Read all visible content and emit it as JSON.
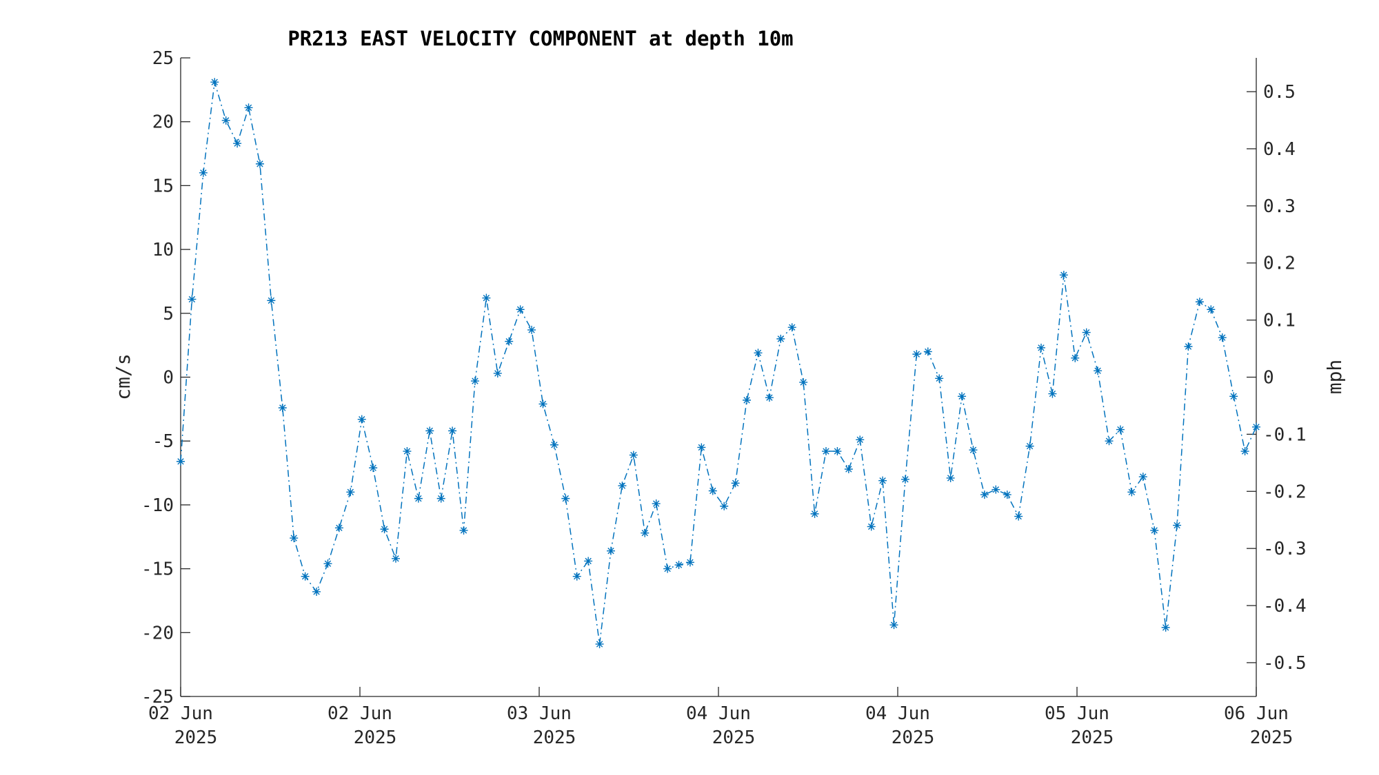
{
  "chart_data": {
    "type": "line",
    "title": "PR213 EAST VELOCITY COMPONENT at depth 10m",
    "ylabel": "cm/s",
    "y2label": "mph",
    "ylim": [
      -25,
      25
    ],
    "y2lim": [
      -0.5592,
      0.5592
    ],
    "yticks": [
      "25",
      "20",
      "15",
      "10",
      "5",
      "0",
      "-5",
      "-10",
      "-15",
      "-20",
      "-25"
    ],
    "y2ticks": [
      "0.5",
      "0.4",
      "0.3",
      "0.2",
      "0.1",
      "0",
      "-0.1",
      "-0.2",
      "-0.3",
      "-0.4",
      "-0.5"
    ],
    "xticks": [
      {
        "day": "02 Jun",
        "year": "2025"
      },
      {
        "day": "02 Jun",
        "year": "2025"
      },
      {
        "day": "03 Jun",
        "year": "2025"
      },
      {
        "day": "04 Jun",
        "year": "2025"
      },
      {
        "day": "04 Jun",
        "year": "2025"
      },
      {
        "day": "05 Jun",
        "year": "2025"
      },
      {
        "day": "06 Jun",
        "year": "2025"
      }
    ],
    "grid": false,
    "line_style": "dash-dot",
    "marker": "asterisk",
    "series": [
      {
        "color": "#0072BD",
        "values": [
          -6.6,
          6.1,
          16.0,
          23.1,
          20.1,
          18.3,
          21.1,
          16.7,
          6.0,
          -2.4,
          -12.6,
          -15.6,
          -16.8,
          -14.6,
          -11.8,
          -9.0,
          -3.3,
          -7.1,
          -11.9,
          -14.2,
          -5.8,
          -9.5,
          -4.2,
          -9.5,
          -4.2,
          -12.0,
          -0.3,
          6.2,
          0.3,
          2.8,
          5.3,
          3.7,
          -2.1,
          -5.3,
          -9.5,
          -15.6,
          -14.4,
          -20.9,
          -13.6,
          -8.5,
          -6.1,
          -12.2,
          -9.9,
          -15.0,
          -14.7,
          -14.5,
          -5.5,
          -8.9,
          -10.1,
          -8.3,
          -1.8,
          1.9,
          -1.6,
          3.0,
          3.9,
          -0.4,
          -10.7,
          -5.8,
          -5.8,
          -7.2,
          -4.9,
          -11.7,
          -8.1,
          -19.4,
          -8.0,
          1.8,
          2.0,
          -0.1,
          -7.9,
          -1.5,
          -5.7,
          -9.2,
          -8.8,
          -9.2,
          -10.9,
          -5.4,
          2.3,
          -1.3,
          8.0,
          1.5,
          3.5,
          0.5,
          -5.0,
          -4.1,
          -9.0,
          -7.8,
          -12.0,
          -19.6,
          -11.6,
          2.4,
          5.9,
          5.3,
          3.1,
          -1.5,
          -5.8,
          -3.9
        ]
      }
    ]
  }
}
